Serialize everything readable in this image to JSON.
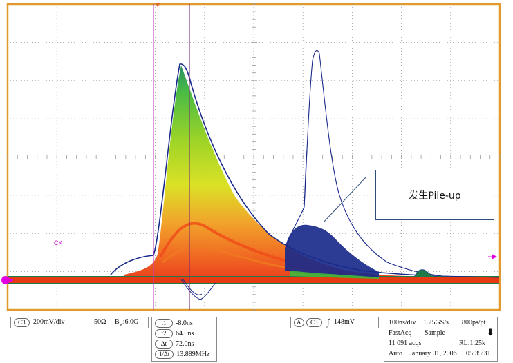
{
  "screen": {
    "annotation_label": "发生Pile-up",
    "channel_marker": "CK",
    "colors": {
      "frame": "#e39a2c",
      "grid": "#9a9a9a",
      "cursor": "#c040c0",
      "cursor2": "#7a2a7a",
      "trace": "#1a2a8a",
      "marker": "#e000e0"
    }
  },
  "chan_box": {
    "channel": "C3",
    "scale": "200mV/div",
    "impedance": "50Ω",
    "bandwidth_prefix": "B",
    "bandwidth_sub": "w",
    "bandwidth_value": ":6.0G"
  },
  "cursor_box": {
    "rows": [
      {
        "tag": "t1",
        "value": "-8.0ns"
      },
      {
        "tag": "t2",
        "value": "64.0ns"
      },
      {
        "tag": "Δt",
        "value": "72.0ns"
      },
      {
        "tag": "1/Δt",
        "value": "13.889MHz"
      }
    ]
  },
  "trigger_box": {
    "mode": "A",
    "channel": "C3",
    "level": "148mV"
  },
  "timebase_box": {
    "time_div": "100ns/div",
    "sample_rate": "1.25GS/s",
    "resolution": "800ps/pt",
    "acq_mode": "FastAcq",
    "sample_mode": "Sample",
    "acqs": "11 091 acqs",
    "record_length": "RL:1.25k",
    "trigger_mode": "Auto",
    "date": "January 01, 2006",
    "time": "05:35:31"
  }
}
